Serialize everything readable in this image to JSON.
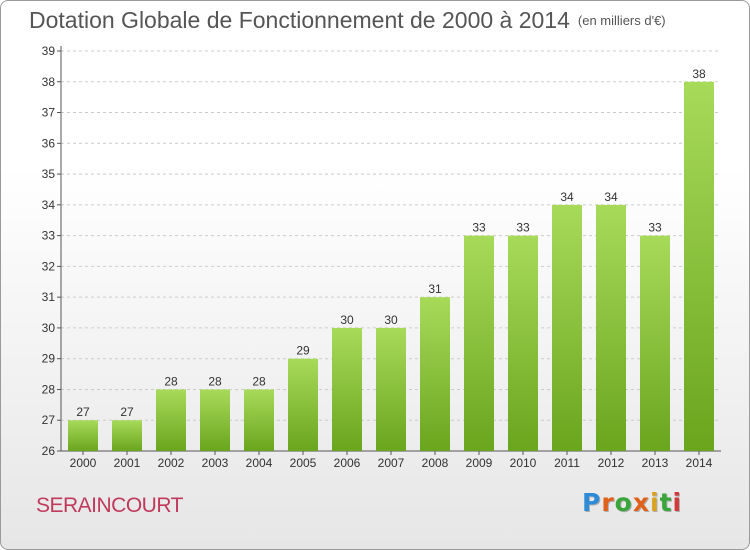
{
  "header": {
    "title": "Dotation Globale de Fonctionnement de 2000 à 2014",
    "subtitle": "(en milliers d'€)"
  },
  "footer": {
    "commune": "SERAINCOURT",
    "logo_text": "Proxiti",
    "logo_colors": [
      "#2e8bd8",
      "#e0621a",
      "#3aa53a",
      "#e0621a",
      "#d9a21f",
      "#3aa53a",
      "#d03a3a"
    ]
  },
  "colors": {
    "bar_light": "#a8da5a",
    "bar_dark": "#6aa51e",
    "grid": "#cccccc",
    "axis": "#555555"
  },
  "chart_data": {
    "type": "bar",
    "title": "Dotation Globale de Fonctionnement de 2000 à 2014",
    "subtitle": "(en milliers d'€)",
    "xlabel": "",
    "ylabel": "",
    "categories": [
      "2000",
      "2001",
      "2002",
      "2003",
      "2004",
      "2005",
      "2006",
      "2007",
      "2008",
      "2009",
      "2010",
      "2011",
      "2012",
      "2013",
      "2014"
    ],
    "values": [
      27,
      27,
      28,
      28,
      28,
      29,
      30,
      30,
      31,
      33,
      33,
      34,
      34,
      33,
      38
    ],
    "ylim": [
      26,
      39
    ],
    "yticks": [
      26,
      27,
      28,
      29,
      30,
      31,
      32,
      33,
      34,
      35,
      36,
      37,
      38,
      39
    ],
    "grid": true,
    "data_labels": true
  }
}
